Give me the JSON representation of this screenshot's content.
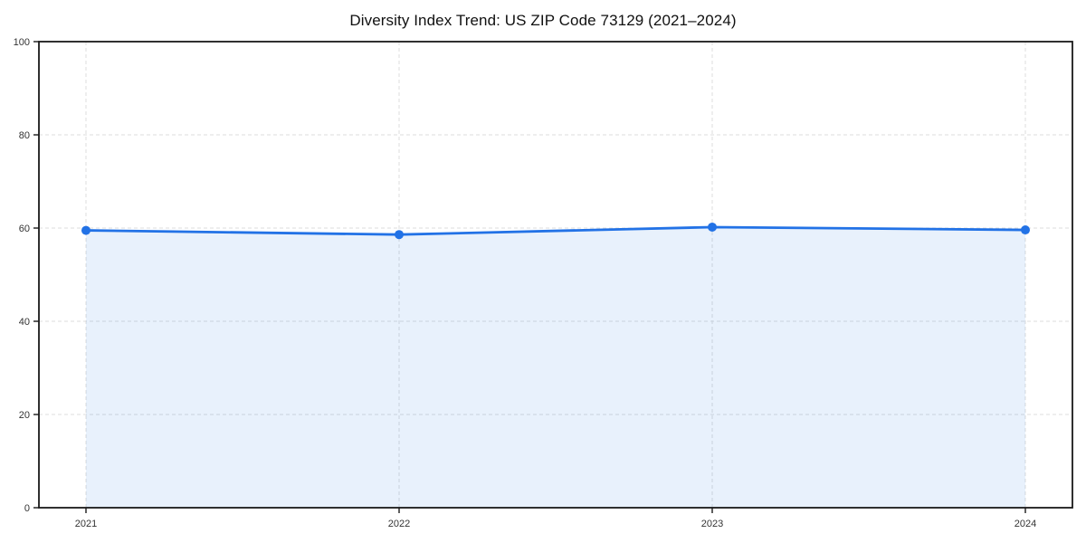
{
  "chart_data": {
    "type": "area",
    "title": "Diversity Index Trend: US ZIP Code 73129 (2021–2024)",
    "categories": [
      "2021",
      "2022",
      "2023",
      "2024"
    ],
    "series": [
      {
        "name": "Diversity Index",
        "values": [
          59.5,
          58.6,
          60.2,
          59.6
        ]
      }
    ],
    "xlabel": "",
    "ylabel": "",
    "ylim": [
      0,
      100
    ],
    "yticks": [
      0,
      20,
      40,
      60,
      80,
      100
    ],
    "grid": true,
    "grid_style": "dashed",
    "legend": false,
    "marker": "circle",
    "colors": {
      "line": "#2272e6",
      "marker": "#2272e6",
      "area_fill": "rgba(34,114,230,0.10)",
      "grid": "#dcdcdc",
      "axis": "#1a1a1a",
      "tick_label": "#333333",
      "title": "#111111",
      "background": "#ffffff"
    }
  }
}
